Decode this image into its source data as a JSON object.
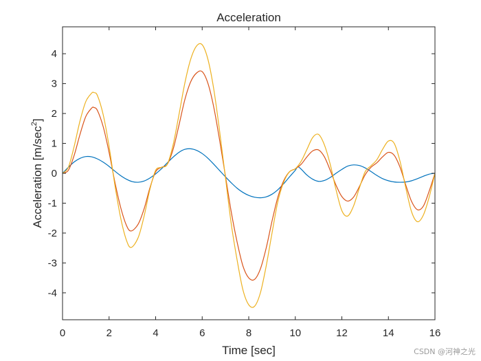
{
  "chart_data": {
    "type": "line",
    "title": "Acceleration",
    "xlabel": "Time [sec]",
    "ylabel_main": "Acceleration [m/sec",
    "ylabel_sup": "2",
    "ylabel_end": "]",
    "xlim": [
      0,
      16
    ],
    "ylim": [
      -4.9,
      4.9
    ],
    "xticks": [
      0,
      2,
      4,
      6,
      8,
      10,
      12,
      14,
      16
    ],
    "yticks": [
      -4,
      -3,
      -2,
      -1,
      0,
      1,
      2,
      3,
      4
    ],
    "grid": false,
    "colors": {
      "axes": "#262626",
      "series_blue": "#0072BD",
      "series_red": "#D95319",
      "series_yellow": "#EDB120"
    },
    "series": [
      {
        "name": "series-blue",
        "color": "#0072BD",
        "x": [
          0,
          0.25,
          0.5,
          0.75,
          1.0,
          1.25,
          1.5,
          1.75,
          2.0,
          2.25,
          2.5,
          2.75,
          3.0,
          3.25,
          3.5,
          3.75,
          4.0,
          4.25,
          4.5,
          4.75,
          5.0,
          5.25,
          5.5,
          5.75,
          6.0,
          6.25,
          6.5,
          6.75,
          7.0,
          7.25,
          7.5,
          7.75,
          8.0,
          8.25,
          8.5,
          8.75,
          9.0,
          9.25,
          9.5,
          9.75,
          10.0,
          10.1,
          10.25,
          10.5,
          10.75,
          11.0,
          11.25,
          11.5,
          11.75,
          12.0,
          12.25,
          12.5,
          12.75,
          13.0,
          13.25,
          13.5,
          13.75,
          14.0,
          14.25,
          14.5,
          14.75,
          15.0,
          15.25,
          15.5,
          15.75,
          16.0
        ],
        "y": [
          0.0,
          0.2,
          0.38,
          0.5,
          0.56,
          0.55,
          0.48,
          0.37,
          0.23,
          0.07,
          -0.08,
          -0.2,
          -0.28,
          -0.3,
          -0.26,
          -0.16,
          -0.02,
          0.15,
          0.35,
          0.54,
          0.7,
          0.8,
          0.82,
          0.77,
          0.66,
          0.5,
          0.3,
          0.09,
          -0.12,
          -0.32,
          -0.5,
          -0.64,
          -0.74,
          -0.8,
          -0.82,
          -0.79,
          -0.7,
          -0.55,
          -0.35,
          -0.12,
          0.1,
          0.22,
          0.14,
          -0.06,
          -0.2,
          -0.27,
          -0.24,
          -0.14,
          0.0,
          0.13,
          0.24,
          0.28,
          0.26,
          0.18,
          0.06,
          -0.07,
          -0.18,
          -0.25,
          -0.29,
          -0.3,
          -0.29,
          -0.25,
          -0.18,
          -0.1,
          -0.03,
          0.0
        ]
      },
      {
        "name": "series-red",
        "color": "#D95319",
        "x": [
          0,
          0.25,
          0.5,
          0.75,
          1.0,
          1.25,
          1.35,
          1.5,
          1.75,
          2.0,
          2.25,
          2.5,
          2.75,
          2.95,
          3.25,
          3.5,
          3.75,
          4.0,
          4.25,
          4.5,
          4.75,
          5.0,
          5.25,
          5.5,
          5.75,
          6.0,
          6.25,
          6.5,
          6.75,
          7.0,
          7.25,
          7.5,
          7.75,
          8.0,
          8.25,
          8.5,
          8.75,
          9.0,
          9.25,
          9.5,
          9.75,
          10.0,
          10.25,
          10.5,
          10.75,
          11.0,
          11.25,
          11.5,
          11.75,
          12.0,
          12.25,
          12.5,
          12.75,
          13.0,
          13.25,
          13.5,
          13.75,
          14.0,
          14.25,
          14.5,
          14.75,
          15.0,
          15.25,
          15.5,
          15.75,
          16.0
        ],
        "y": [
          0.0,
          0.1,
          0.6,
          1.3,
          1.9,
          2.18,
          2.2,
          2.1,
          1.55,
          0.7,
          -0.3,
          -1.15,
          -1.75,
          -1.93,
          -1.7,
          -1.2,
          -0.5,
          0.05,
          0.2,
          0.3,
          0.8,
          1.6,
          2.45,
          3.05,
          3.35,
          3.4,
          3.0,
          2.2,
          1.1,
          -0.1,
          -1.3,
          -2.3,
          -3.1,
          -3.5,
          -3.55,
          -3.2,
          -2.5,
          -1.6,
          -0.8,
          -0.25,
          0.05,
          0.15,
          0.3,
          0.55,
          0.75,
          0.78,
          0.55,
          0.1,
          -0.4,
          -0.78,
          -0.93,
          -0.8,
          -0.45,
          -0.05,
          0.2,
          0.35,
          0.55,
          0.7,
          0.6,
          0.2,
          -0.4,
          -0.95,
          -1.22,
          -1.1,
          -0.6,
          0.0
        ]
      },
      {
        "name": "series-yellow",
        "color": "#EDB120",
        "x": [
          0,
          0.25,
          0.5,
          0.75,
          1.0,
          1.25,
          1.35,
          1.5,
          1.75,
          2.0,
          2.25,
          2.5,
          2.75,
          2.95,
          3.25,
          3.5,
          3.75,
          4.0,
          4.25,
          4.5,
          4.75,
          5.0,
          5.25,
          5.5,
          5.75,
          6.0,
          6.25,
          6.5,
          6.75,
          7.0,
          7.25,
          7.5,
          7.75,
          8.0,
          8.25,
          8.5,
          8.75,
          9.0,
          9.25,
          9.5,
          9.75,
          10.0,
          10.25,
          10.5,
          10.75,
          11.0,
          11.25,
          11.5,
          11.75,
          12.0,
          12.25,
          12.5,
          12.75,
          13.0,
          13.25,
          13.5,
          13.75,
          14.0,
          14.25,
          14.5,
          14.75,
          15.0,
          15.25,
          15.5,
          15.75,
          16.0
        ],
        "y": [
          0.0,
          0.2,
          0.9,
          1.75,
          2.4,
          2.68,
          2.7,
          2.6,
          1.95,
          0.9,
          -0.4,
          -1.5,
          -2.25,
          -2.48,
          -2.15,
          -1.45,
          -0.55,
          0.1,
          0.2,
          0.3,
          0.95,
          1.95,
          3.0,
          3.8,
          4.25,
          4.3,
          3.8,
          2.8,
          1.4,
          -0.15,
          -1.7,
          -2.9,
          -3.9,
          -4.4,
          -4.45,
          -4.0,
          -3.1,
          -2.0,
          -0.95,
          -0.3,
          0.05,
          0.15,
          0.4,
          0.8,
          1.2,
          1.3,
          0.95,
          0.3,
          -0.55,
          -1.25,
          -1.43,
          -1.1,
          -0.5,
          0.05,
          0.25,
          0.45,
          0.8,
          1.08,
          1.0,
          0.4,
          -0.5,
          -1.3,
          -1.62,
          -1.4,
          -0.8,
          0.0
        ]
      }
    ]
  },
  "footer": {
    "watermark": "CSDN @河神之光"
  }
}
